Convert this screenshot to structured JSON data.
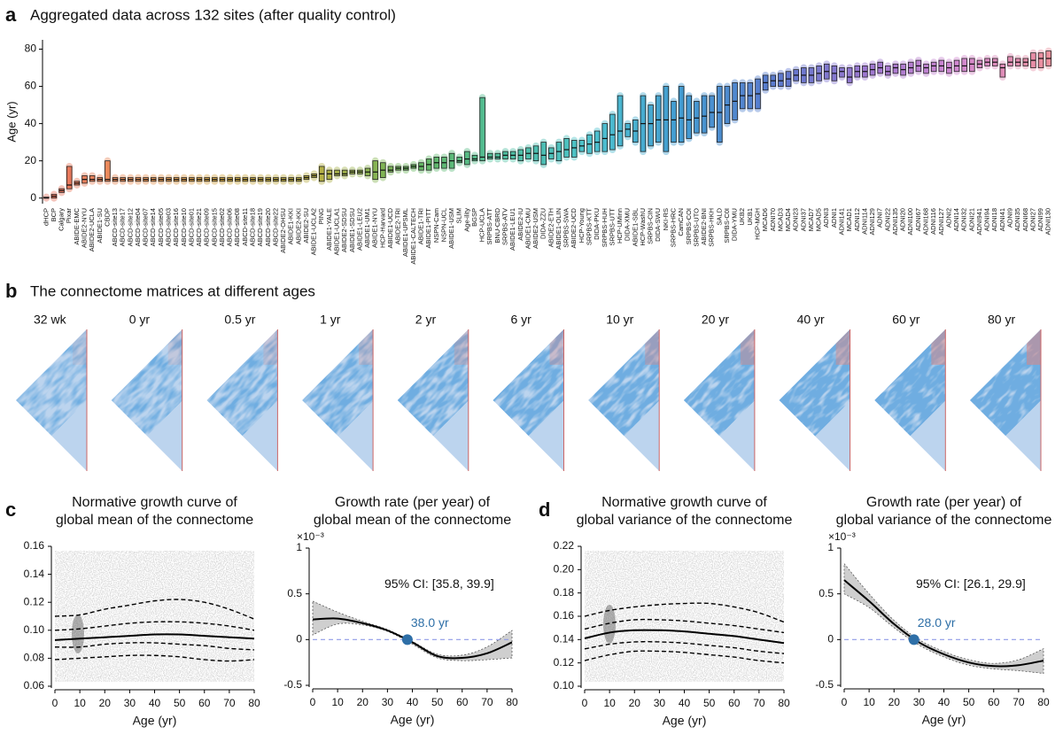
{
  "panel_labels": [
    "a",
    "b",
    "c",
    "d"
  ],
  "chart_data": [
    {
      "type": "box",
      "title": "Aggregated data across 132 sites (after quality control)",
      "ylabel": "Age (yr)",
      "categories": [
        "dHCP",
        "BCP",
        "Calgary",
        "Pixar",
        "ABIDE-EMC",
        "ABIDE2-NYU",
        "ABIDE2-UCLA",
        "ABIDE1-SU",
        "CBDP",
        "ABCD-site13",
        "ABCD-site17",
        "ABCD-site12",
        "ABCD-site04",
        "ABCD-site07",
        "ABCD-site14",
        "ABCD-site05",
        "ABCD-site03",
        "ABCD-site16",
        "ABCD-site10",
        "ABCD-site01",
        "ABCD-site21",
        "ABCD-site09",
        "ABCD-site15",
        "ABCD-site02",
        "ABCD-site06",
        "ABCD-site08",
        "ABCD-site11",
        "ABCD-site18",
        "ABCD-site19",
        "ABCD-site20",
        "ABCD-site22",
        "ABIDE2-OHSU",
        "ABIDE1-KKI",
        "ABIDE2-KKI",
        "ABIDE2-SU",
        "ABIDE1-UCLA2",
        "PING",
        "ABIDE1-YALE",
        "ABIDE1-UCLA1",
        "ABIDE2-SDSU",
        "ABIDE1-SDSU",
        "ABIDE1-LEU2",
        "ABIDE1-UM1",
        "ABIDE1-NYU",
        "HCP-Harvard",
        "ABIDE1-UCD",
        "ABIDE2-TRI",
        "ABIDE1-UPSML",
        "ABIDE1-CALTECH",
        "ABIDE1-TRI",
        "ABIDE1-PITT",
        "NSPN-Cam",
        "NSPN-UCL",
        "ABIDE1-USM",
        "SLIM",
        "Age-ility",
        "BGSP",
        "HCP-UCLA",
        "SRPBS-ATT",
        "BNU-CBRD",
        "SRPBS-ATV",
        "ABIDE1-LEU1",
        "ABIDE2-IU",
        "ABIDE1-CMU",
        "ABIDE2-USM",
        "DIDA-ZZU",
        "ABIDE2-ETH",
        "ABIDE1-OLIN",
        "SRPBS-SWA",
        "ABIDE2-UCD",
        "HCP-Young",
        "SRPBS-KTT",
        "DIDA-PKU",
        "SRPBS-HUH",
        "SRPBS-UTT",
        "HCP-UMinn",
        "DIDA-XMU",
        "ABIDE1-SBL",
        "HCP-WashU",
        "SRPBS-CIN",
        "DIDA-SWU",
        "NKI-RS",
        "SRPBS-HRC",
        "CamCAN",
        "SRPBS-COI",
        "SRPBS-UTO",
        "ABIDE2-BNI",
        "SRPBS-HKH",
        "SALD",
        "SRPBS-C0I",
        "DIDA-YMU",
        "UKB2",
        "UKB1",
        "HCP-MGH",
        "MCAD6",
        "ADNI70",
        "MCAD3",
        "MCAD4",
        "ADNI23",
        "ADNI37",
        "MCAD7",
        "MCAD5",
        "ADNI3",
        "ADNI1",
        "ADNI141",
        "MCAD1",
        "ADNI12",
        "ADNI114",
        "ADNI129",
        "ADNI7",
        "ADNI22",
        "ADNI135",
        "ADNI20",
        "ADNI100",
        "ADNI67",
        "ADNI168",
        "ADNI116",
        "ADNI127",
        "ADNI2",
        "ADNI14",
        "ADNI32",
        "ADNI21",
        "ADNI941",
        "ADNI94",
        "ADNI18",
        "ADNI41",
        "ADNI9",
        "ADNI35",
        "ADNI68",
        "ADNI27",
        "ADNI99",
        "ADNI130"
      ],
      "q1": [
        0,
        0,
        3,
        5,
        7,
        8,
        9,
        9,
        9,
        9,
        9,
        9,
        9,
        9,
        9,
        9,
        9,
        9,
        9,
        9,
        9,
        9,
        9,
        9,
        9,
        9,
        9,
        9,
        9,
        9,
        9,
        9,
        9,
        9,
        10,
        11,
        9,
        10,
        12,
        12,
        13,
        13,
        12,
        10,
        11,
        14,
        15,
        15,
        16,
        15,
        15,
        16,
        16,
        16,
        19,
        18,
        20,
        20,
        21,
        21,
        21,
        21,
        20,
        21,
        20,
        18,
        21,
        20,
        22,
        22,
        25,
        24,
        25,
        25,
        26,
        28,
        33,
        30,
        25,
        28,
        30,
        25,
        30,
        30,
        32,
        35,
        35,
        38,
        30,
        40,
        42,
        48,
        48,
        48,
        58,
        60,
        60,
        60,
        63,
        62,
        62,
        63,
        64,
        63,
        65,
        62,
        65,
        65,
        66,
        67,
        66,
        67,
        66,
        67,
        68,
        67,
        68,
        68,
        67,
        68,
        68,
        68,
        70,
        71,
        71,
        65,
        71,
        71,
        71,
        70,
        70,
        71
      ],
      "median": [
        0,
        1,
        4,
        7,
        8,
        10,
        10,
        10,
        10,
        10,
        10,
        10,
        10,
        10,
        10,
        10,
        10,
        10,
        10,
        10,
        10,
        10,
        10,
        10,
        10,
        10,
        10,
        10,
        10,
        10,
        10,
        10,
        10,
        10,
        11,
        12,
        13,
        13,
        13,
        13,
        14,
        14,
        14,
        14,
        15,
        15,
        16,
        16,
        17,
        17,
        18,
        19,
        19,
        20,
        20,
        21,
        21,
        22,
        22,
        22,
        23,
        23,
        23,
        24,
        24,
        23,
        24,
        25,
        26,
        27,
        28,
        29,
        30,
        32,
        34,
        36,
        37,
        36,
        40,
        40,
        42,
        42,
        42,
        43,
        42,
        43,
        44,
        46,
        46,
        50,
        52,
        55,
        55,
        56,
        62,
        63,
        63,
        64,
        66,
        66,
        66,
        67,
        68,
        67,
        68,
        65,
        68,
        68,
        69,
        70,
        68,
        70,
        69,
        70,
        71,
        70,
        71,
        71,
        70,
        71,
        71,
        72,
        72,
        73,
        73,
        70,
        73,
        73,
        73,
        74,
        75,
        75
      ],
      "q3": [
        0.5,
        2,
        5,
        17,
        9,
        12,
        12,
        11,
        20,
        11,
        11,
        11,
        11,
        11,
        11,
        11,
        11,
        11,
        11,
        11,
        11,
        11,
        11,
        11,
        11,
        11,
        11,
        11,
        11,
        11,
        11,
        11,
        11,
        11,
        12,
        13,
        17,
        15,
        15,
        15,
        15,
        15,
        16,
        20,
        19,
        17,
        17,
        17,
        18,
        19,
        21,
        22,
        22,
        24,
        22,
        25,
        23,
        54,
        24,
        24,
        25,
        25,
        26,
        27,
        28,
        30,
        27,
        30,
        32,
        31,
        31,
        34,
        36,
        40,
        45,
        55,
        40,
        42,
        55,
        50,
        55,
        60,
        52,
        60,
        55,
        52,
        55,
        55,
        60,
        60,
        62,
        62,
        62,
        64,
        66,
        66,
        67,
        68,
        69,
        70,
        70,
        71,
        72,
        71,
        70,
        70,
        71,
        71,
        72,
        73,
        71,
        72,
        72,
        73,
        74,
        72,
        73,
        74,
        73,
        74,
        75,
        75,
        74,
        75,
        75,
        72,
        76,
        75,
        75,
        78,
        78,
        79
      ],
      "palette": [
        "#e0523c",
        "#e8803a",
        "#c99a1e",
        "#a8a020",
        "#4aa83c",
        "#2bb08a",
        "#29b5c4",
        "#1e86c8",
        "#3a5fc4",
        "#8a5cc8",
        "#c870c8",
        "#e87a8a"
      ],
      "ylim": [
        -3,
        85
      ],
      "yticks": [
        0,
        20,
        40,
        60,
        80
      ]
    },
    {
      "type": "matrix",
      "title": "The connectome matrices at different ages",
      "categories": [
        "32 wk",
        "0 yr",
        "0.5 yr",
        "1 yr",
        "2 yr",
        "6 yr",
        "10 yr",
        "20 yr",
        "40 yr",
        "60 yr",
        "80 yr"
      ]
    },
    {
      "type": "line",
      "title": [
        "Normative growth curve of",
        "global mean of the connectome"
      ],
      "xlabel": "Age (yr)",
      "x": [
        0,
        10,
        20,
        30,
        40,
        50,
        60,
        70,
        80
      ],
      "series": [
        {
          "color": "#000000",
          "dash": false,
          "values": [
            0.093,
            0.094,
            0.095,
            0.096,
            0.097,
            0.097,
            0.096,
            0.095,
            0.094
          ]
        },
        {
          "color": "#000000",
          "dash": true,
          "values": [
            0.11,
            0.111,
            0.115,
            0.118,
            0.121,
            0.122,
            0.12,
            0.115,
            0.108
          ]
        },
        {
          "color": "#000000",
          "dash": true,
          "values": [
            0.1,
            0.101,
            0.103,
            0.105,
            0.106,
            0.106,
            0.105,
            0.103,
            0.1
          ]
        },
        {
          "color": "#000000",
          "dash": true,
          "values": [
            0.088,
            0.088,
            0.09,
            0.091,
            0.091,
            0.09,
            0.089,
            0.087,
            0.086
          ]
        },
        {
          "color": "#000000",
          "dash": true,
          "values": [
            0.079,
            0.08,
            0.081,
            0.082,
            0.082,
            0.081,
            0.079,
            0.078,
            0.079
          ]
        }
      ],
      "xlim": [
        0,
        80
      ],
      "xticks": [
        0,
        10,
        20,
        30,
        40,
        50,
        60,
        70,
        80
      ],
      "ylim": [
        0.06,
        0.16
      ],
      "yticks": [
        0.06,
        0.08,
        {
          "value": 0.1,
          "label": "0.10"
        },
        0.12,
        0.14,
        0.16
      ]
    },
    {
      "type": "line",
      "title": [
        "Growth rate (per year) of",
        "global mean of the connectome"
      ],
      "xlabel": "Age (yr)",
      "scale_label": "×10⁻³",
      "x": [
        0,
        10,
        20,
        30,
        40,
        50,
        60,
        70,
        80
      ],
      "series": [
        {
          "color": "#000000",
          "dash": false,
          "values": [
            0.22,
            0.23,
            0.18,
            0.1,
            -0.03,
            -0.18,
            -0.2,
            -0.15,
            -0.03
          ]
        }
      ],
      "band": {
        "color": "#cfcfcf",
        "upper": [
          0.42,
          0.3,
          0.2,
          0.11,
          -0.02,
          -0.16,
          -0.17,
          -0.08,
          0.1
        ],
        "lower": [
          0.05,
          0.17,
          0.16,
          0.09,
          -0.05,
          -0.2,
          -0.23,
          -0.22,
          -0.2
        ]
      },
      "reference_line": 0,
      "marker": {
        "x": 38,
        "y": 0,
        "label": "38.0 yr",
        "color": "#2e6fa7"
      },
      "annotation": "95% CI: [35.8, 39.9]",
      "xlim": [
        0,
        80
      ],
      "xticks": [
        0,
        10,
        20,
        30,
        40,
        50,
        60,
        70,
        80
      ],
      "ylim": [
        -0.5,
        1
      ],
      "yticks": [
        -0.5,
        0,
        0.5,
        1
      ]
    },
    {
      "type": "line",
      "title": [
        "Normative growth curve of",
        "global variance of the connectome"
      ],
      "xlabel": "Age (yr)",
      "x": [
        0,
        10,
        20,
        30,
        40,
        50,
        60,
        70,
        80
      ],
      "series": [
        {
          "color": "#000000",
          "dash": false,
          "values": [
            0.141,
            0.146,
            0.148,
            0.148,
            0.147,
            0.145,
            0.143,
            0.14,
            0.137
          ]
        },
        {
          "color": "#000000",
          "dash": true,
          "values": [
            0.16,
            0.165,
            0.168,
            0.17,
            0.171,
            0.171,
            0.168,
            0.163,
            0.155
          ]
        },
        {
          "color": "#000000",
          "dash": true,
          "values": [
            0.149,
            0.154,
            0.157,
            0.157,
            0.156,
            0.154,
            0.152,
            0.149,
            0.146
          ]
        },
        {
          "color": "#000000",
          "dash": true,
          "values": [
            0.132,
            0.136,
            0.138,
            0.138,
            0.137,
            0.135,
            0.133,
            0.13,
            0.128
          ]
        },
        {
          "color": "#000000",
          "dash": true,
          "values": [
            0.122,
            0.127,
            0.13,
            0.13,
            0.129,
            0.127,
            0.125,
            0.122,
            0.12
          ]
        }
      ],
      "xlim": [
        0,
        80
      ],
      "xticks": [
        0,
        10,
        20,
        30,
        40,
        50,
        60,
        70,
        80
      ],
      "ylim": [
        0.1,
        0.22
      ],
      "yticks": [
        {
          "value": 0.1,
          "label": "0.10"
        },
        0.12,
        0.14,
        0.16,
        0.18,
        {
          "value": 0.2,
          "label": "0.20"
        },
        0.22
      ]
    },
    {
      "type": "line",
      "title": [
        "Growth rate (per year) of",
        "global variance of the connectome"
      ],
      "xlabel": "Age (yr)",
      "scale_label": "×10⁻³",
      "x": [
        0,
        10,
        20,
        30,
        40,
        50,
        60,
        70,
        80
      ],
      "series": [
        {
          "color": "#000000",
          "dash": false,
          "values": [
            0.65,
            0.42,
            0.17,
            -0.03,
            -0.16,
            -0.25,
            -0.29,
            -0.28,
            -0.23
          ]
        }
      ],
      "band": {
        "color": "#cfcfcf",
        "upper": [
          0.83,
          0.5,
          0.21,
          0,
          -0.13,
          -0.22,
          -0.26,
          -0.22,
          -0.1
        ],
        "lower": [
          0.5,
          0.35,
          0.13,
          -0.06,
          -0.19,
          -0.28,
          -0.32,
          -0.34,
          -0.37
        ]
      },
      "reference_line": 0,
      "marker": {
        "x": 28,
        "y": 0,
        "label": "28.0 yr",
        "color": "#2e6fa7"
      },
      "annotation": "95% CI: [26.1, 29.9]",
      "xlim": [
        0,
        80
      ],
      "xticks": [
        0,
        10,
        20,
        30,
        40,
        50,
        60,
        70,
        80
      ],
      "ylim": [
        -0.5,
        1
      ],
      "yticks": [
        -0.5,
        0,
        0.5,
        1
      ]
    }
  ]
}
